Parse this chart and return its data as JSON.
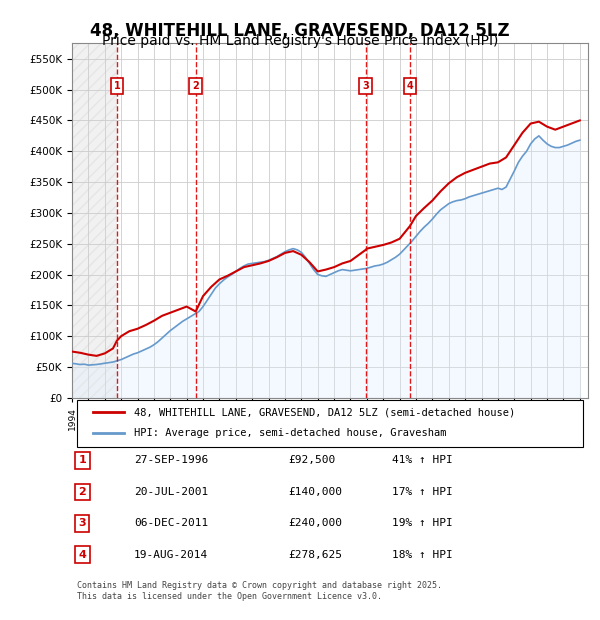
{
  "title": "48, WHITEHILL LANE, GRAVESEND, DA12 5LZ",
  "subtitle": "Price paid vs. HM Land Registry's House Price Index (HPI)",
  "title_fontsize": 12,
  "subtitle_fontsize": 10,
  "ylabel": "",
  "ylim": [
    0,
    575000
  ],
  "yticks": [
    0,
    50000,
    100000,
    150000,
    200000,
    250000,
    300000,
    350000,
    400000,
    450000,
    500000,
    550000
  ],
  "ytick_labels": [
    "£0",
    "£50K",
    "£100K",
    "£150K",
    "£200K",
    "£250K",
    "£300K",
    "£350K",
    "£400K",
    "£450K",
    "£500K",
    "£550K"
  ],
  "xlim_start": 1994.0,
  "xlim_end": 2025.5,
  "transactions": [
    {
      "num": 1,
      "date": "27-SEP-1996",
      "date_decimal": 1996.74,
      "price": 92500,
      "pct": "41%",
      "dir": "↑"
    },
    {
      "num": 2,
      "date": "20-JUL-2001",
      "date_decimal": 2001.55,
      "price": 140000,
      "pct": "17%",
      "dir": "↑"
    },
    {
      "num": 3,
      "date": "06-DEC-2011",
      "date_decimal": 2011.93,
      "price": 240000,
      "pct": "19%",
      "dir": "↑"
    },
    {
      "num": 4,
      "date": "19-AUG-2014",
      "date_decimal": 2014.63,
      "price": 278625,
      "pct": "18%",
      "dir": "↑"
    }
  ],
  "legend_line1": "48, WHITEHILL LANE, GRAVESEND, DA12 5LZ (semi-detached house)",
  "legend_line2": "HPI: Average price, semi-detached house, Gravesham",
  "footer": "Contains HM Land Registry data © Crown copyright and database right 2025.\nThis data is licensed under the Open Government Licence v3.0.",
  "price_line_color": "#cc0000",
  "hpi_line_color": "#6699cc",
  "hpi_fill_color": "#ddeeff",
  "bg_hatch_color": "#dddddd",
  "vline_color": "#dd0000",
  "marker_box_color": "#cc0000",
  "hpi_data": {
    "years": [
      1994.0,
      1994.25,
      1994.5,
      1994.75,
      1995.0,
      1995.25,
      1995.5,
      1995.75,
      1996.0,
      1996.25,
      1996.5,
      1996.75,
      1997.0,
      1997.25,
      1997.5,
      1997.75,
      1998.0,
      1998.25,
      1998.5,
      1998.75,
      1999.0,
      1999.25,
      1999.5,
      1999.75,
      2000.0,
      2000.25,
      2000.5,
      2000.75,
      2001.0,
      2001.25,
      2001.5,
      2001.75,
      2002.0,
      2002.25,
      2002.5,
      2002.75,
      2003.0,
      2003.25,
      2003.5,
      2003.75,
      2004.0,
      2004.25,
      2004.5,
      2004.75,
      2005.0,
      2005.25,
      2005.5,
      2005.75,
      2006.0,
      2006.25,
      2006.5,
      2006.75,
      2007.0,
      2007.25,
      2007.5,
      2007.75,
      2008.0,
      2008.25,
      2008.5,
      2008.75,
      2009.0,
      2009.25,
      2009.5,
      2009.75,
      2010.0,
      2010.25,
      2010.5,
      2010.75,
      2011.0,
      2011.25,
      2011.5,
      2011.75,
      2012.0,
      2012.25,
      2012.5,
      2012.75,
      2013.0,
      2013.25,
      2013.5,
      2013.75,
      2014.0,
      2014.25,
      2014.5,
      2014.75,
      2015.0,
      2015.25,
      2015.5,
      2015.75,
      2016.0,
      2016.25,
      2016.5,
      2016.75,
      2017.0,
      2017.25,
      2017.5,
      2017.75,
      2018.0,
      2018.25,
      2018.5,
      2018.75,
      2019.0,
      2019.25,
      2019.5,
      2019.75,
      2020.0,
      2020.25,
      2020.5,
      2020.75,
      2021.0,
      2021.25,
      2021.5,
      2021.75,
      2022.0,
      2022.25,
      2022.5,
      2022.75,
      2023.0,
      2023.25,
      2023.5,
      2023.75,
      2024.0,
      2024.25,
      2024.5,
      2024.75,
      2025.0
    ],
    "values": [
      56000,
      55000,
      54000,
      54500,
      53000,
      53500,
      54000,
      55000,
      56000,
      57000,
      58000,
      60000,
      62000,
      65000,
      68000,
      71000,
      73000,
      76000,
      79000,
      82000,
      86000,
      91000,
      97000,
      103000,
      109000,
      114000,
      119000,
      124000,
      128000,
      132000,
      136000,
      140000,
      148000,
      158000,
      168000,
      178000,
      185000,
      191000,
      196000,
      200000,
      205000,
      210000,
      214000,
      217000,
      218000,
      219000,
      220000,
      221000,
      223000,
      226000,
      229000,
      233000,
      237000,
      240000,
      242000,
      240000,
      236000,
      228000,
      218000,
      208000,
      200000,
      198000,
      197000,
      200000,
      203000,
      206000,
      208000,
      207000,
      206000,
      207000,
      208000,
      209000,
      210000,
      212000,
      214000,
      215000,
      217000,
      220000,
      224000,
      228000,
      233000,
      240000,
      247000,
      254000,
      262000,
      270000,
      277000,
      283000,
      290000,
      298000,
      305000,
      310000,
      315000,
      318000,
      320000,
      321000,
      323000,
      326000,
      328000,
      330000,
      332000,
      334000,
      336000,
      338000,
      340000,
      338000,
      342000,
      355000,
      368000,
      382000,
      392000,
      400000,
      412000,
      420000,
      425000,
      418000,
      412000,
      408000,
      406000,
      406000,
      408000,
      410000,
      413000,
      416000,
      418000
    ]
  },
  "price_data": {
    "years": [
      1994.0,
      1994.5,
      1995.0,
      1995.5,
      1996.0,
      1996.5,
      1996.74,
      1997.0,
      1997.5,
      1998.0,
      1998.5,
      1999.0,
      1999.5,
      2000.0,
      2000.5,
      2001.0,
      2001.55,
      2002.0,
      2002.5,
      2003.0,
      2003.5,
      2004.0,
      2004.5,
      2005.0,
      2005.5,
      2006.0,
      2006.5,
      2007.0,
      2007.5,
      2008.0,
      2008.5,
      2009.0,
      2009.5,
      2010.0,
      2010.5,
      2011.0,
      2011.93,
      2012.0,
      2012.5,
      2013.0,
      2013.5,
      2014.0,
      2014.63,
      2015.0,
      2015.5,
      2016.0,
      2016.5,
      2017.0,
      2017.5,
      2018.0,
      2018.5,
      2019.0,
      2019.5,
      2020.0,
      2020.5,
      2021.0,
      2021.5,
      2022.0,
      2022.5,
      2023.0,
      2023.5,
      2024.0,
      2024.5,
      2025.0
    ],
    "values": [
      75000,
      73000,
      70000,
      68000,
      72000,
      80000,
      92500,
      100000,
      108000,
      112000,
      118000,
      125000,
      133000,
      138000,
      143000,
      148000,
      140000,
      165000,
      180000,
      192000,
      198000,
      205000,
      212000,
      215000,
      218000,
      222000,
      228000,
      235000,
      238000,
      232000,
      220000,
      205000,
      208000,
      212000,
      218000,
      222000,
      240000,
      242000,
      245000,
      248000,
      252000,
      258000,
      278625,
      295000,
      308000,
      320000,
      335000,
      348000,
      358000,
      365000,
      370000,
      375000,
      380000,
      382000,
      390000,
      410000,
      430000,
      445000,
      448000,
      440000,
      435000,
      440000,
      445000,
      450000
    ]
  }
}
